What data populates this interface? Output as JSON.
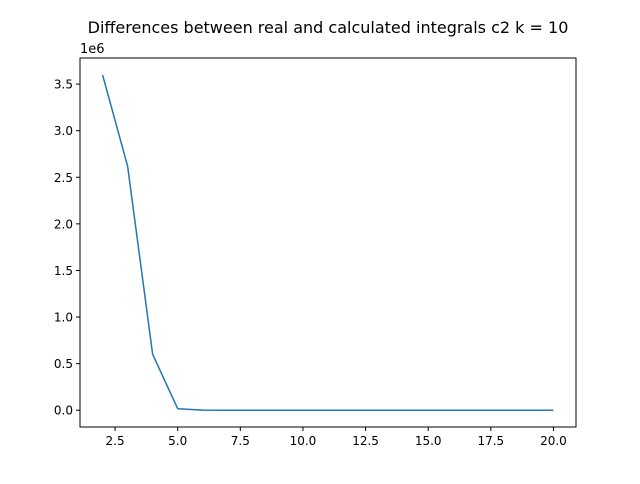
{
  "chart_data": {
    "type": "line",
    "title": "Differences between real and calculated integrals c2 k = 10",
    "xlabel": "",
    "ylabel": "",
    "offset_label": "1e6",
    "x": [
      2,
      3,
      4,
      5,
      6,
      7,
      8,
      9,
      10,
      11,
      12,
      13,
      14,
      15,
      16,
      17,
      18,
      19,
      20
    ],
    "series": [
      {
        "color": "#1f77b4",
        "values": [
          3.6,
          2.62,
          0.6,
          0.016,
          0.001,
          0.0002,
          0.0001,
          0,
          0,
          0,
          0,
          0,
          0,
          0,
          0,
          0,
          0,
          0,
          0
        ]
      }
    ],
    "xlim": [
      1.1,
      20.9
    ],
    "ylim": [
      -0.18,
      3.78
    ],
    "x_ticks": [
      2.5,
      5.0,
      7.5,
      10.0,
      12.5,
      15.0,
      17.5,
      20.0
    ],
    "x_tick_labels": [
      "2.5",
      "5.0",
      "7.5",
      "10.0",
      "12.5",
      "15.0",
      "17.5",
      "20.0"
    ],
    "y_ticks": [
      0.0,
      0.5,
      1.0,
      1.5,
      2.0,
      2.5,
      3.0,
      3.5
    ],
    "y_tick_labels": [
      "0.0",
      "0.5",
      "1.0",
      "1.5",
      "2.0",
      "2.5",
      "3.0",
      "3.5"
    ],
    "grid": false,
    "legend": "none"
  }
}
